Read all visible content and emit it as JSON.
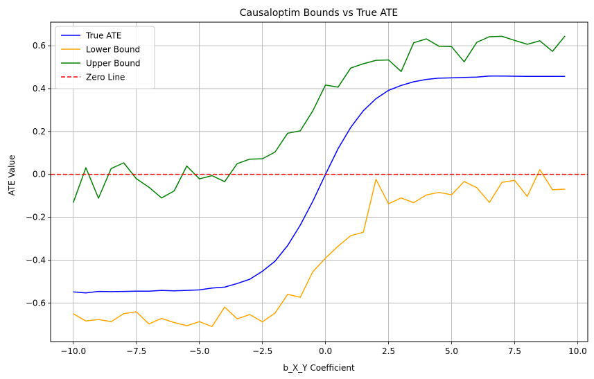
{
  "chart_data": {
    "type": "line",
    "title": "Causaloptim Bounds vs True ATE",
    "xlabel": "b_X_Y Coefficient",
    "ylabel": "ATE Value",
    "xlim": [
      -10.9,
      10.4
    ],
    "ylim": [
      -0.78,
      0.71
    ],
    "x_ticks": [
      -10.0,
      -7.5,
      -5.0,
      -2.5,
      0.0,
      2.5,
      5.0,
      7.5,
      10.0
    ],
    "x_tick_labels": [
      "−10.0",
      "−7.5",
      "−5.0",
      "−2.5",
      "0.0",
      "2.5",
      "5.0",
      "7.5",
      "10.0"
    ],
    "y_ticks": [
      -0.6,
      -0.4,
      -0.2,
      0.0,
      0.2,
      0.4,
      0.6
    ],
    "y_tick_labels": [
      "−0.6",
      "−0.4",
      "−0.2",
      "0.0",
      "0.2",
      "0.4",
      "0.6"
    ],
    "grid": true,
    "legend_position": "top-left",
    "x": [
      -10.0,
      -9.5,
      -9.0,
      -8.5,
      -8.0,
      -7.5,
      -7.0,
      -6.5,
      -6.0,
      -5.5,
      -5.0,
      -4.5,
      -4.0,
      -3.5,
      -3.0,
      -2.5,
      -2.0,
      -1.5,
      -1.0,
      -0.5,
      0.0,
      0.5,
      1.0,
      1.5,
      2.0,
      2.5,
      3.0,
      3.5,
      4.0,
      4.5,
      5.0,
      5.5,
      6.0,
      6.5,
      7.0,
      7.5,
      8.0,
      8.5,
      9.0,
      9.5
    ],
    "series": [
      {
        "name": "True ATE",
        "color": "#0000ff",
        "dashed": false,
        "values": [
          -0.548,
          -0.553,
          -0.546,
          -0.547,
          -0.546,
          -0.545,
          -0.545,
          -0.541,
          -0.543,
          -0.541,
          -0.539,
          -0.53,
          -0.526,
          -0.509,
          -0.489,
          -0.452,
          -0.405,
          -0.332,
          -0.237,
          -0.125,
          0.0,
          0.12,
          0.219,
          0.297,
          0.353,
          0.392,
          0.415,
          0.432,
          0.443,
          0.449,
          0.45,
          0.452,
          0.454,
          0.459,
          0.459,
          0.458,
          0.457,
          0.457,
          0.457,
          0.457
        ]
      },
      {
        "name": "Lower Bound",
        "color": "#ffa500",
        "dashed": false,
        "values": [
          -0.65,
          -0.684,
          -0.677,
          -0.687,
          -0.65,
          -0.641,
          -0.698,
          -0.672,
          -0.691,
          -0.706,
          -0.687,
          -0.71,
          -0.619,
          -0.674,
          -0.654,
          -0.688,
          -0.647,
          -0.56,
          -0.573,
          -0.454,
          -0.391,
          -0.335,
          -0.286,
          -0.27,
          -0.023,
          -0.137,
          -0.11,
          -0.132,
          -0.096,
          -0.084,
          -0.095,
          -0.033,
          -0.062,
          -0.131,
          -0.037,
          -0.028,
          -0.103,
          0.022,
          -0.072,
          -0.069
        ]
      },
      {
        "name": "Upper Bound",
        "color": "#008000",
        "dashed": false,
        "values": [
          -0.132,
          0.031,
          -0.111,
          0.027,
          0.054,
          -0.02,
          -0.06,
          -0.11,
          -0.077,
          0.039,
          -0.021,
          -0.006,
          -0.034,
          0.05,
          0.071,
          0.073,
          0.104,
          0.192,
          0.203,
          0.297,
          0.417,
          0.407,
          0.496,
          0.516,
          0.532,
          0.534,
          0.48,
          0.614,
          0.632,
          0.598,
          0.596,
          0.525,
          0.616,
          0.642,
          0.644,
          0.625,
          0.607,
          0.623,
          0.574,
          0.646
        ]
      },
      {
        "name": "Zero Line",
        "color": "#ff0000",
        "dashed": true,
        "hline": 0.0
      }
    ]
  }
}
